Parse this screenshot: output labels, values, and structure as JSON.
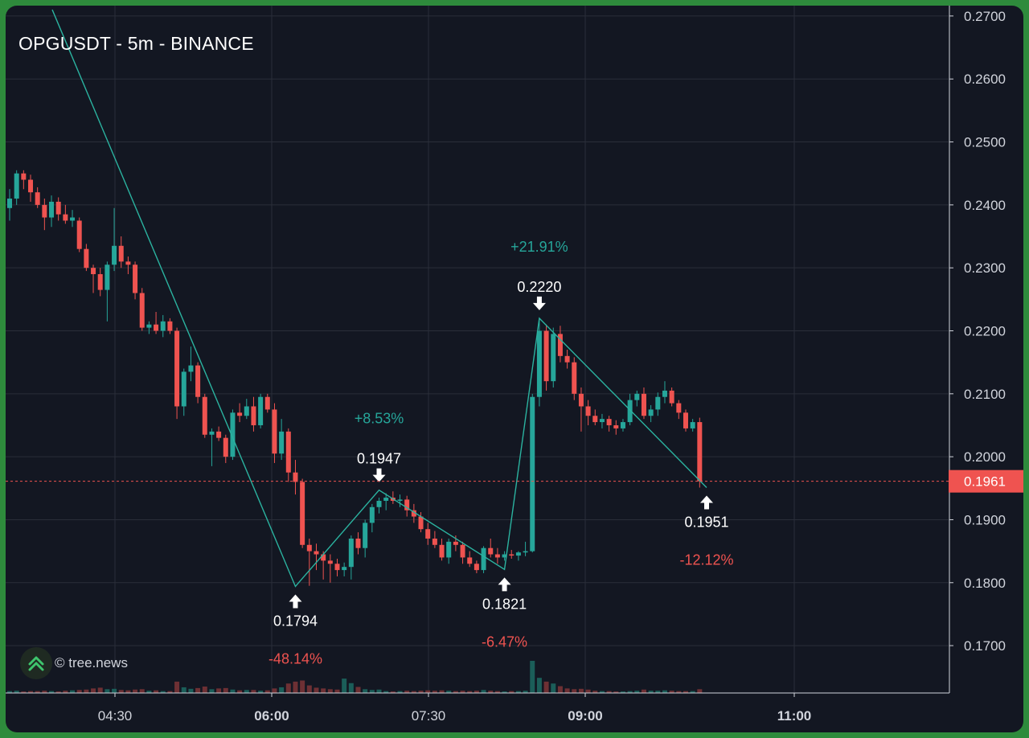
{
  "title": "OPGUSDT - 5m - BINANCE",
  "watermark": {
    "text": "© tree.news",
    "icon": "tree-news-logo-icon"
  },
  "colors": {
    "background": "#131722",
    "frame": "#2e8b3c",
    "grid": "#2a2e39",
    "up": "#26a69a",
    "down": "#ef5350",
    "up_volume": "#1b5e59",
    "down_volume": "#6e3034",
    "zigzag": "#2bb3a0",
    "text": "#d1d4dc",
    "price_tag": "#ef5350"
  },
  "chart_data": {
    "type": "candlestick",
    "symbol": "OPGUSDT",
    "interval": "5m",
    "exchange": "BINANCE",
    "x_ticks": [
      {
        "label": "04:30",
        "bold": false
      },
      {
        "label": "06:00",
        "bold": true
      },
      {
        "label": "07:30",
        "bold": false
      },
      {
        "label": "09:00",
        "bold": true
      },
      {
        "label": "11:00",
        "bold": true
      }
    ],
    "y_ticks": [
      "0.2700",
      "0.2600",
      "0.2500",
      "0.2400",
      "0.2300",
      "0.2200",
      "0.2100",
      "0.2000",
      "0.1900",
      "0.1800",
      "0.1700"
    ],
    "ylim": [
      0.1635,
      0.2705
    ],
    "grid": true,
    "current_price": {
      "value": 0.1961,
      "label": "0.1961"
    },
    "pivots": [
      {
        "value": 0.1794,
        "label": "0.1794",
        "kind": "low",
        "change_label": "-48.14%",
        "candle": 41
      },
      {
        "value": 0.1947,
        "label": "0.1947",
        "kind": "high",
        "change_label": "+8.53%",
        "candle": 53
      },
      {
        "value": 0.1821,
        "label": "0.1821",
        "kind": "low",
        "change_label": "-6.47%",
        "candle": 71
      },
      {
        "value": 0.222,
        "label": "0.2220",
        "kind": "high",
        "change_label": "+21.91%",
        "candle": 76
      },
      {
        "value": 0.1951,
        "label": "0.1951",
        "kind": "low",
        "change_label": "-12.12%",
        "candle": 100
      }
    ],
    "zigzag_start_price": 0.271,
    "candles": [
      [
        0.2395,
        0.2425,
        0.2375,
        0.241,
        5
      ],
      [
        0.241,
        0.2455,
        0.24,
        0.245,
        6
      ],
      [
        0.245,
        0.2455,
        0.2425,
        0.244,
        4
      ],
      [
        0.244,
        0.2448,
        0.2405,
        0.242,
        5
      ],
      [
        0.242,
        0.2428,
        0.2395,
        0.24,
        5
      ],
      [
        0.24,
        0.241,
        0.236,
        0.238,
        6
      ],
      [
        0.238,
        0.2415,
        0.2365,
        0.2405,
        5
      ],
      [
        0.2405,
        0.2412,
        0.2375,
        0.2385,
        4
      ],
      [
        0.2385,
        0.24,
        0.237,
        0.2375,
        6
      ],
      [
        0.2375,
        0.2392,
        0.2365,
        0.238,
        7
      ],
      [
        0.2375,
        0.238,
        0.2325,
        0.233,
        8
      ],
      [
        0.233,
        0.2338,
        0.2295,
        0.23,
        9
      ],
      [
        0.23,
        0.2305,
        0.226,
        0.229,
        12
      ],
      [
        0.229,
        0.23,
        0.2255,
        0.2265,
        14
      ],
      [
        0.2265,
        0.231,
        0.2215,
        0.2305,
        10
      ],
      [
        0.2305,
        0.2395,
        0.2295,
        0.2335,
        11
      ],
      [
        0.2335,
        0.235,
        0.23,
        0.231,
        8
      ],
      [
        0.231,
        0.2318,
        0.229,
        0.2305,
        7
      ],
      [
        0.2305,
        0.231,
        0.225,
        0.226,
        9
      ],
      [
        0.226,
        0.2268,
        0.22,
        0.2205,
        10
      ],
      [
        0.2205,
        0.2215,
        0.2195,
        0.221,
        6
      ],
      [
        0.221,
        0.223,
        0.2195,
        0.22,
        7
      ],
      [
        0.22,
        0.2225,
        0.219,
        0.2215,
        5
      ],
      [
        0.2215,
        0.222,
        0.2195,
        0.22,
        5
      ],
      [
        0.22,
        0.2205,
        0.206,
        0.208,
        30
      ],
      [
        0.208,
        0.214,
        0.2065,
        0.2135,
        15
      ],
      [
        0.2135,
        0.2175,
        0.212,
        0.2145,
        11
      ],
      [
        0.2145,
        0.215,
        0.2085,
        0.2095,
        13
      ],
      [
        0.2095,
        0.21,
        0.203,
        0.2035,
        17
      ],
      [
        0.2035,
        0.2045,
        0.1985,
        0.204,
        10
      ],
      [
        0.204,
        0.2048,
        0.2025,
        0.203,
        12
      ],
      [
        0.203,
        0.2035,
        0.199,
        0.2,
        13
      ],
      [
        0.2,
        0.2075,
        0.1995,
        0.207,
        9
      ],
      [
        0.207,
        0.2085,
        0.2055,
        0.2065,
        7
      ],
      [
        0.2065,
        0.2092,
        0.206,
        0.208,
        8
      ],
      [
        0.208,
        0.2095,
        0.204,
        0.205,
        8
      ],
      [
        0.205,
        0.21,
        0.2045,
        0.2095,
        6
      ],
      [
        0.2095,
        0.21,
        0.207,
        0.2075,
        7
      ],
      [
        0.2075,
        0.2085,
        0.199,
        0.2005,
        12
      ],
      [
        0.2005,
        0.206,
        0.1995,
        0.204,
        15
      ],
      [
        0.204,
        0.2045,
        0.196,
        0.1975,
        25
      ],
      [
        0.1975,
        0.1995,
        0.194,
        0.196,
        30
      ],
      [
        0.196,
        0.1965,
        0.1855,
        0.186,
        33
      ],
      [
        0.186,
        0.187,
        0.1795,
        0.185,
        20
      ],
      [
        0.185,
        0.1862,
        0.182,
        0.1845,
        14
      ],
      [
        0.1845,
        0.185,
        0.1805,
        0.1835,
        12
      ],
      [
        0.1835,
        0.1845,
        0.18,
        0.183,
        10
      ],
      [
        0.183,
        0.1838,
        0.181,
        0.182,
        9
      ],
      [
        0.182,
        0.1832,
        0.181,
        0.1825,
        38
      ],
      [
        0.1825,
        0.1875,
        0.1805,
        0.187,
        26
      ],
      [
        0.187,
        0.188,
        0.1845,
        0.1855,
        16
      ],
      [
        0.1855,
        0.19,
        0.184,
        0.1895,
        10
      ],
      [
        0.1895,
        0.1925,
        0.188,
        0.192,
        8
      ],
      [
        0.192,
        0.1935,
        0.191,
        0.193,
        9
      ],
      [
        0.193,
        0.1942,
        0.1915,
        0.1935,
        5
      ],
      [
        0.1935,
        0.1945,
        0.1925,
        0.193,
        4
      ],
      [
        0.193,
        0.194,
        0.192,
        0.1932,
        5
      ],
      [
        0.1932,
        0.1938,
        0.1905,
        0.1915,
        6
      ],
      [
        0.1915,
        0.1925,
        0.1895,
        0.1905,
        5
      ],
      [
        0.1905,
        0.1912,
        0.188,
        0.1885,
        6
      ],
      [
        0.1885,
        0.1895,
        0.186,
        0.187,
        7
      ],
      [
        0.187,
        0.1882,
        0.1855,
        0.186,
        6
      ],
      [
        0.186,
        0.187,
        0.1835,
        0.184,
        7
      ],
      [
        0.184,
        0.187,
        0.183,
        0.1865,
        6
      ],
      [
        0.1865,
        0.1875,
        0.185,
        0.186,
        5
      ],
      [
        0.186,
        0.1865,
        0.183,
        0.184,
        6
      ],
      [
        0.184,
        0.185,
        0.1825,
        0.183,
        5
      ],
      [
        0.183,
        0.1835,
        0.1815,
        0.182,
        6
      ],
      [
        0.182,
        0.1858,
        0.1815,
        0.1855,
        8
      ],
      [
        0.1855,
        0.187,
        0.184,
        0.1845,
        6
      ],
      [
        0.1845,
        0.1855,
        0.183,
        0.184,
        5
      ],
      [
        0.184,
        0.185,
        0.1835,
        0.1845,
        4
      ],
      [
        0.1845,
        0.1852,
        0.1838,
        0.1843,
        5
      ],
      [
        0.1843,
        0.185,
        0.1835,
        0.1848,
        5
      ],
      [
        0.1848,
        0.1865,
        0.1842,
        0.185,
        6
      ],
      [
        0.185,
        0.21,
        0.1848,
        0.2095,
        85
      ],
      [
        0.2095,
        0.222,
        0.208,
        0.22,
        40
      ],
      [
        0.22,
        0.221,
        0.2105,
        0.212,
        30
      ],
      [
        0.212,
        0.2205,
        0.211,
        0.2195,
        25
      ],
      [
        0.2195,
        0.2208,
        0.215,
        0.216,
        18
      ],
      [
        0.216,
        0.217,
        0.214,
        0.215,
        12
      ],
      [
        0.215,
        0.2158,
        0.209,
        0.21,
        10
      ],
      [
        0.21,
        0.211,
        0.204,
        0.208,
        11
      ],
      [
        0.208,
        0.209,
        0.205,
        0.2065,
        9
      ],
      [
        0.2065,
        0.2075,
        0.205,
        0.2055,
        6
      ],
      [
        0.2055,
        0.2068,
        0.2045,
        0.206,
        5
      ],
      [
        0.206,
        0.2065,
        0.204,
        0.205,
        5
      ],
      [
        0.205,
        0.2058,
        0.2035,
        0.2045,
        4
      ],
      [
        0.2045,
        0.206,
        0.204,
        0.2055,
        4
      ],
      [
        0.2055,
        0.21,
        0.205,
        0.209,
        5
      ],
      [
        0.209,
        0.2105,
        0.208,
        0.21,
        6
      ],
      [
        0.21,
        0.211,
        0.206,
        0.2065,
        9
      ],
      [
        0.2065,
        0.2082,
        0.2055,
        0.2075,
        6
      ],
      [
        0.2075,
        0.2102,
        0.2065,
        0.2095,
        6
      ],
      [
        0.2095,
        0.212,
        0.2085,
        0.2105,
        7
      ],
      [
        0.2105,
        0.211,
        0.208,
        0.2085,
        6
      ],
      [
        0.2085,
        0.209,
        0.206,
        0.207,
        5
      ],
      [
        0.207,
        0.2075,
        0.204,
        0.2045,
        5
      ],
      [
        0.2045,
        0.206,
        0.204,
        0.2055,
        5
      ],
      [
        0.2055,
        0.2062,
        0.1951,
        0.1961,
        10
      ]
    ]
  }
}
